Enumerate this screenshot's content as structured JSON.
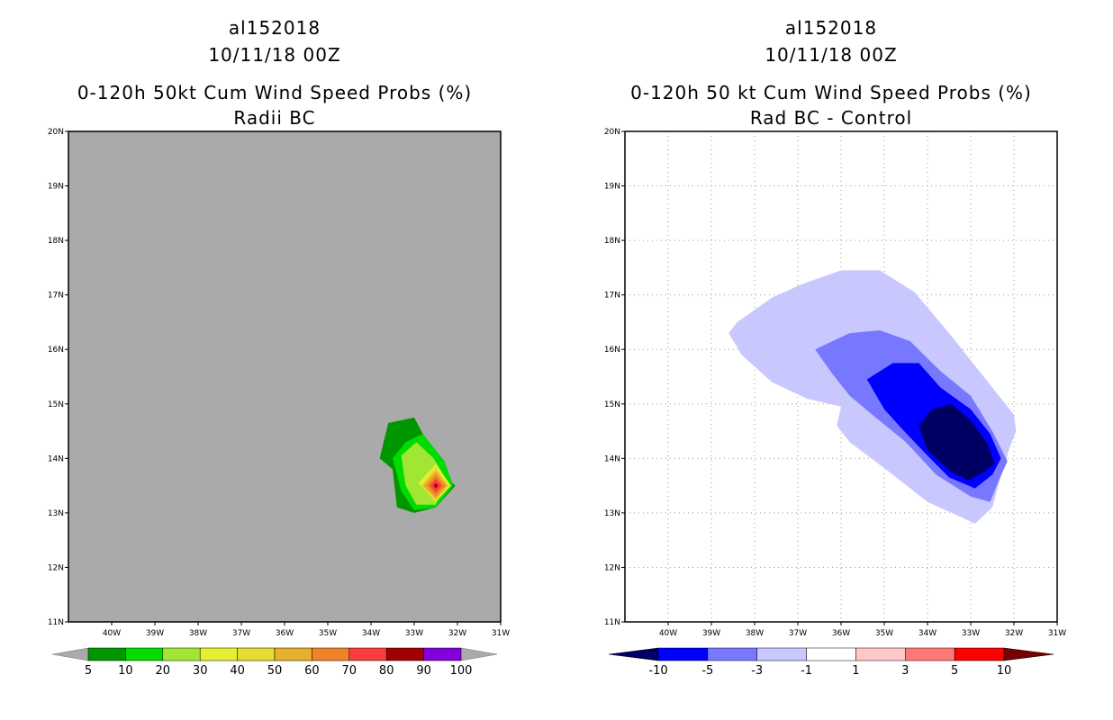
{
  "colors": {
    "probs": [
      "#009600",
      "#00dc00",
      "#a0e632",
      "#e6f032",
      "#e6dc32",
      "#e6af2d",
      "#f08228",
      "#fa3c3c",
      "#a00000",
      "#8200dc"
    ],
    "diff": [
      "#000064",
      "#0000ff",
      "#7878ff",
      "#c8c8ff",
      "#ffffff",
      "#ffc8c8",
      "#ff7878",
      "#ff0000",
      "#780000"
    ],
    "left_background": "#aaaaaa"
  },
  "chart_data": [
    {
      "type": "contour",
      "header": {
        "storm": "al152018",
        "date": "10/11/18 00Z"
      },
      "title": "0-120h 50kt Cum Wind Speed Probs (%)",
      "subtitle": "Radii BC",
      "xlim": [
        -41,
        -31
      ],
      "ylim": [
        11,
        20
      ],
      "x_ticks": [
        "40W",
        "39W",
        "38W",
        "37W",
        "36W",
        "35W",
        "34W",
        "33W",
        "32W",
        "31W"
      ],
      "y_ticks": [
        "11N",
        "12N",
        "13N",
        "14N",
        "15N",
        "16N",
        "17N",
        "18N",
        "19N",
        "20N"
      ],
      "colorbar_levels": [
        "5",
        "10",
        "20",
        "30",
        "40",
        "50",
        "60",
        "70",
        "80",
        "90",
        "100"
      ],
      "contours": [
        {
          "level": "5-10",
          "points": [
            [
              -33.8,
              14.0
            ],
            [
              -33.6,
              14.65
            ],
            [
              -33.0,
              14.75
            ],
            [
              -32.7,
              14.3
            ],
            [
              -32.3,
              13.7
            ],
            [
              -32.05,
              13.5
            ],
            [
              -32.5,
              13.1
            ],
            [
              -33.0,
              13.0
            ],
            [
              -33.4,
              13.1
            ],
            [
              -33.5,
              13.8
            ]
          ]
        },
        {
          "level": "10-20",
          "points": [
            [
              -33.5,
              14.0
            ],
            [
              -33.2,
              14.3
            ],
            [
              -32.8,
              14.45
            ],
            [
              -32.3,
              13.95
            ],
            [
              -32.1,
              13.5
            ],
            [
              -32.5,
              13.1
            ],
            [
              -33.0,
              13.05
            ],
            [
              -33.3,
              13.4
            ]
          ]
        },
        {
          "level": "20-30",
          "points": [
            [
              -33.3,
              14.05
            ],
            [
              -32.95,
              14.3
            ],
            [
              -32.55,
              14.0
            ],
            [
              -32.25,
              13.6
            ],
            [
              -32.5,
              13.15
            ],
            [
              -32.95,
              13.15
            ],
            [
              -33.2,
              13.5
            ]
          ]
        },
        {
          "level": "30-40",
          "points": [
            [
              -32.9,
              13.55
            ],
            [
              -32.5,
              13.9
            ],
            [
              -32.15,
              13.5
            ],
            [
              -32.5,
              13.2
            ]
          ]
        },
        {
          "level": "40-50",
          "points": [
            [
              -32.85,
              13.5
            ],
            [
              -32.5,
              13.85
            ],
            [
              -32.2,
              13.5
            ],
            [
              -32.5,
              13.22
            ]
          ]
        },
        {
          "level": "50-60",
          "points": [
            [
              -32.8,
              13.5
            ],
            [
              -32.5,
              13.78
            ],
            [
              -32.23,
              13.5
            ],
            [
              -32.5,
              13.25
            ]
          ]
        },
        {
          "level": "60-70",
          "points": [
            [
              -32.72,
              13.5
            ],
            [
              -32.5,
              13.7
            ],
            [
              -32.28,
              13.5
            ],
            [
              -32.5,
              13.3
            ]
          ]
        },
        {
          "level": "70-80",
          "points": [
            [
              -32.64,
              13.5
            ],
            [
              -32.5,
              13.63
            ],
            [
              -32.36,
              13.5
            ],
            [
              -32.5,
              13.37
            ]
          ]
        },
        {
          "level": "80-90",
          "points": [
            [
              -32.55,
              13.5
            ],
            [
              -32.5,
              13.55
            ],
            [
              -32.45,
              13.5
            ],
            [
              -32.5,
              13.45
            ]
          ]
        }
      ]
    },
    {
      "type": "contour",
      "header": {
        "storm": "al152018",
        "date": "10/11/18 00Z"
      },
      "title": "0-120h 50 kt Cum Wind Speed Probs (%)",
      "subtitle": "Rad BC - Control",
      "xlim": [
        -41,
        -31
      ],
      "ylim": [
        11,
        20
      ],
      "grid": true,
      "x_ticks": [
        "40W",
        "39W",
        "38W",
        "37W",
        "36W",
        "35W",
        "34W",
        "33W",
        "32W",
        "31W"
      ],
      "y_ticks": [
        "11N",
        "12N",
        "13N",
        "14N",
        "15N",
        "16N",
        "17N",
        "18N",
        "19N",
        "20N"
      ],
      "colorbar_levels": [
        "-10",
        "-5",
        "-3",
        "-1",
        "1",
        "3",
        "5",
        "10"
      ],
      "contours": [
        {
          "level": "-3 to -1",
          "points": [
            [
              -38.4,
              16.5
            ],
            [
              -37.6,
              16.95
            ],
            [
              -36.9,
              17.2
            ],
            [
              -36.0,
              17.45
            ],
            [
              -35.1,
              17.45
            ],
            [
              -34.3,
              17.05
            ],
            [
              -33.5,
              16.3
            ],
            [
              -32.5,
              15.3
            ],
            [
              -32.0,
              14.8
            ],
            [
              -31.95,
              14.5
            ],
            [
              -32.1,
              14.2
            ],
            [
              -32.4,
              13.4
            ],
            [
              -32.5,
              13.1
            ],
            [
              -32.9,
              12.8
            ],
            [
              -33.3,
              12.95
            ],
            [
              -34.0,
              13.2
            ],
            [
              -34.8,
              13.7
            ],
            [
              -35.3,
              14.0
            ],
            [
              -35.8,
              14.3
            ],
            [
              -36.1,
              14.6
            ],
            [
              -36.0,
              14.95
            ],
            [
              -36.8,
              15.1
            ],
            [
              -37.6,
              15.4
            ],
            [
              -38.3,
              15.9
            ],
            [
              -38.6,
              16.3
            ]
          ]
        },
        {
          "level": "-5 to -3",
          "points": [
            [
              -36.6,
              16.0
            ],
            [
              -35.8,
              16.3
            ],
            [
              -35.1,
              16.35
            ],
            [
              -34.4,
              16.15
            ],
            [
              -33.7,
              15.6
            ],
            [
              -33.0,
              15.15
            ],
            [
              -32.5,
              14.5
            ],
            [
              -32.15,
              13.95
            ],
            [
              -32.35,
              13.6
            ],
            [
              -32.55,
              13.2
            ],
            [
              -33.0,
              13.3
            ],
            [
              -33.8,
              13.7
            ],
            [
              -34.5,
              14.3
            ],
            [
              -35.2,
              14.75
            ],
            [
              -35.8,
              15.15
            ],
            [
              -36.2,
              15.55
            ]
          ]
        },
        {
          "level": "-10 to -5",
          "points": [
            [
              -35.4,
              15.45
            ],
            [
              -34.8,
              15.75
            ],
            [
              -34.2,
              15.75
            ],
            [
              -33.7,
              15.3
            ],
            [
              -33.0,
              14.9
            ],
            [
              -32.55,
              14.45
            ],
            [
              -32.3,
              14.0
            ],
            [
              -32.5,
              13.7
            ],
            [
              -32.9,
              13.45
            ],
            [
              -33.5,
              13.65
            ],
            [
              -34.0,
              14.05
            ],
            [
              -34.6,
              14.55
            ],
            [
              -35.0,
              14.9
            ]
          ]
        },
        {
          "level": "< -10",
          "points": [
            [
              -34.2,
              14.6
            ],
            [
              -33.9,
              14.9
            ],
            [
              -33.45,
              15.0
            ],
            [
              -33.0,
              14.7
            ],
            [
              -32.6,
              14.25
            ],
            [
              -32.45,
              13.9
            ],
            [
              -32.7,
              13.75
            ],
            [
              -33.05,
              13.6
            ],
            [
              -33.45,
              13.75
            ],
            [
              -34.0,
              14.15
            ]
          ]
        }
      ]
    }
  ]
}
